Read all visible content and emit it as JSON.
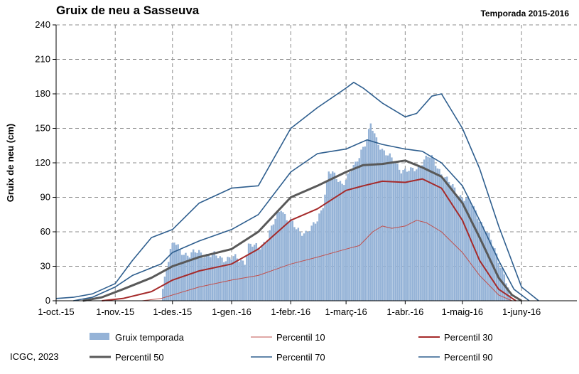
{
  "header": {
    "title": "Gruix de neu a Sasseuva",
    "season": "Temporada 2015-2016"
  },
  "footer": {
    "credit": "ICGC, 2023"
  },
  "chart_data": {
    "type": "area",
    "ylabel": "Gruix de neu (cm)",
    "ylim": [
      0,
      240
    ],
    "yticks": [
      0,
      30,
      60,
      90,
      120,
      150,
      180,
      210,
      240
    ],
    "xlim": [
      "2015-10-01",
      "2016-06-30"
    ],
    "xticks": [
      {
        "date": "2015-10-01",
        "label": "1-oct.-15"
      },
      {
        "date": "2015-11-01",
        "label": "1-nov.-15"
      },
      {
        "date": "2015-12-01",
        "label": "1-des.-15"
      },
      {
        "date": "2016-01-01",
        "label": "1-gen.-16"
      },
      {
        "date": "2016-02-01",
        "label": "1-febr.-16"
      },
      {
        "date": "2016-03-01",
        "label": "1-març-16"
      },
      {
        "date": "2016-04-01",
        "label": "1-abr.-16"
      },
      {
        "date": "2016-05-01",
        "label": "1-maig-16"
      },
      {
        "date": "2016-06-01",
        "label": "1-juny-16"
      }
    ],
    "grid": true,
    "legend_position": "bottom",
    "bars": {
      "name": "Gruix temporada",
      "color": "#95b3d7",
      "points": [
        [
          "2015-11-25",
          0
        ],
        [
          "2015-11-26",
          12
        ],
        [
          "2015-11-28",
          30
        ],
        [
          "2015-11-30",
          44
        ],
        [
          "2015-12-02",
          50
        ],
        [
          "2015-12-05",
          44
        ],
        [
          "2015-12-10",
          40
        ],
        [
          "2015-12-15",
          42
        ],
        [
          "2015-12-20",
          40
        ],
        [
          "2015-12-25",
          38
        ],
        [
          "2015-12-31",
          37
        ],
        [
          "2016-01-05",
          36
        ],
        [
          "2016-01-08",
          35
        ],
        [
          "2016-01-10",
          48
        ],
        [
          "2016-01-15",
          46
        ],
        [
          "2016-01-20",
          55
        ],
        [
          "2016-01-24",
          70
        ],
        [
          "2016-01-27",
          82
        ],
        [
          "2016-01-30",
          72
        ],
        [
          "2016-02-04",
          62
        ],
        [
          "2016-02-09",
          60
        ],
        [
          "2016-02-12",
          62
        ],
        [
          "2016-02-15",
          70
        ],
        [
          "2016-02-18",
          85
        ],
        [
          "2016-02-21",
          112
        ],
        [
          "2016-02-24",
          108
        ],
        [
          "2016-02-28",
          103
        ],
        [
          "2016-03-02",
          108
        ],
        [
          "2016-03-06",
          118
        ],
        [
          "2016-03-09",
          132
        ],
        [
          "2016-03-12",
          140
        ],
        [
          "2016-03-14",
          152
        ],
        [
          "2016-03-17",
          140
        ],
        [
          "2016-03-20",
          133
        ],
        [
          "2016-03-25",
          122
        ],
        [
          "2016-03-30",
          115
        ],
        [
          "2016-04-04",
          112
        ],
        [
          "2016-04-07",
          115
        ],
        [
          "2016-04-10",
          122
        ],
        [
          "2016-04-13",
          125
        ],
        [
          "2016-04-16",
          122
        ],
        [
          "2016-04-20",
          112
        ],
        [
          "2016-04-25",
          100
        ],
        [
          "2016-04-30",
          92
        ],
        [
          "2016-05-05",
          86
        ],
        [
          "2016-05-10",
          72
        ],
        [
          "2016-05-14",
          58
        ],
        [
          "2016-05-18",
          45
        ],
        [
          "2016-05-22",
          28
        ],
        [
          "2016-05-25",
          10
        ],
        [
          "2016-05-27",
          0
        ]
      ]
    },
    "series": [
      {
        "name": "Percentil 10",
        "color": "#c0504d",
        "width": 1,
        "points": [
          [
            "2015-11-15",
            0
          ],
          [
            "2015-11-25",
            2
          ],
          [
            "2015-12-01",
            5
          ],
          [
            "2015-12-15",
            12
          ],
          [
            "2016-01-01",
            18
          ],
          [
            "2016-01-15",
            22
          ],
          [
            "2016-02-01",
            32
          ],
          [
            "2016-02-15",
            38
          ],
          [
            "2016-03-01",
            45
          ],
          [
            "2016-03-08",
            48
          ],
          [
            "2016-03-15",
            60
          ],
          [
            "2016-03-20",
            65
          ],
          [
            "2016-03-25",
            63
          ],
          [
            "2016-04-01",
            65
          ],
          [
            "2016-04-07",
            70
          ],
          [
            "2016-04-12",
            68
          ],
          [
            "2016-04-20",
            60
          ],
          [
            "2016-05-01",
            42
          ],
          [
            "2016-05-10",
            22
          ],
          [
            "2016-05-20",
            5
          ],
          [
            "2016-05-27",
            0
          ]
        ]
      },
      {
        "name": "Percentil 30",
        "color": "#a52a2a",
        "width": 2,
        "points": [
          [
            "2015-10-25",
            0
          ],
          [
            "2015-11-05",
            2
          ],
          [
            "2015-11-20",
            8
          ],
          [
            "2015-12-01",
            18
          ],
          [
            "2015-12-15",
            26
          ],
          [
            "2016-01-01",
            32
          ],
          [
            "2016-01-15",
            45
          ],
          [
            "2016-02-01",
            70
          ],
          [
            "2016-02-15",
            80
          ],
          [
            "2016-03-01",
            96
          ],
          [
            "2016-03-10",
            100
          ],
          [
            "2016-03-20",
            104
          ],
          [
            "2016-04-01",
            103
          ],
          [
            "2016-04-10",
            106
          ],
          [
            "2016-04-20",
            98
          ],
          [
            "2016-05-01",
            70
          ],
          [
            "2016-05-10",
            35
          ],
          [
            "2016-05-20",
            10
          ],
          [
            "2016-05-29",
            0
          ]
        ]
      },
      {
        "name": "Percentil 50",
        "color": "#595959",
        "width": 3,
        "points": [
          [
            "2015-10-15",
            0
          ],
          [
            "2015-10-25",
            3
          ],
          [
            "2015-11-05",
            10
          ],
          [
            "2015-11-20",
            20
          ],
          [
            "2015-12-01",
            30
          ],
          [
            "2015-12-15",
            38
          ],
          [
            "2016-01-01",
            45
          ],
          [
            "2016-01-15",
            60
          ],
          [
            "2016-02-01",
            90
          ],
          [
            "2016-02-15",
            100
          ],
          [
            "2016-03-01",
            112
          ],
          [
            "2016-03-10",
            118
          ],
          [
            "2016-03-20",
            119
          ],
          [
            "2016-04-01",
            122
          ],
          [
            "2016-04-10",
            116
          ],
          [
            "2016-04-20",
            108
          ],
          [
            "2016-05-01",
            85
          ],
          [
            "2016-05-10",
            55
          ],
          [
            "2016-05-20",
            20
          ],
          [
            "2016-05-27",
            5
          ],
          [
            "2016-06-01",
            0
          ]
        ]
      },
      {
        "name": "Percentil 70",
        "color": "#2e5e8e",
        "width": 1.6,
        "points": [
          [
            "2015-10-10",
            0
          ],
          [
            "2015-10-20",
            3
          ],
          [
            "2015-11-01",
            12
          ],
          [
            "2015-11-10",
            22
          ],
          [
            "2015-11-25",
            32
          ],
          [
            "2015-12-01",
            42
          ],
          [
            "2015-12-15",
            52
          ],
          [
            "2016-01-01",
            62
          ],
          [
            "2016-01-15",
            75
          ],
          [
            "2016-02-01",
            112
          ],
          [
            "2016-02-15",
            128
          ],
          [
            "2016-03-01",
            132
          ],
          [
            "2016-03-12",
            140
          ],
          [
            "2016-03-20",
            136
          ],
          [
            "2016-04-01",
            132
          ],
          [
            "2016-04-10",
            130
          ],
          [
            "2016-04-20",
            120
          ],
          [
            "2016-05-01",
            100
          ],
          [
            "2016-05-10",
            70
          ],
          [
            "2016-05-20",
            35
          ],
          [
            "2016-05-28",
            10
          ],
          [
            "2016-06-05",
            0
          ]
        ]
      },
      {
        "name": "Percentil 90",
        "color": "#2e5e8e",
        "width": 1.6,
        "points": [
          [
            "2015-10-01",
            2
          ],
          [
            "2015-10-10",
            3
          ],
          [
            "2015-10-20",
            6
          ],
          [
            "2015-11-01",
            15
          ],
          [
            "2015-11-10",
            35
          ],
          [
            "2015-11-20",
            55
          ],
          [
            "2015-12-01",
            62
          ],
          [
            "2015-12-15",
            85
          ],
          [
            "2016-01-01",
            98
          ],
          [
            "2016-01-15",
            100
          ],
          [
            "2016-02-01",
            150
          ],
          [
            "2016-02-15",
            168
          ],
          [
            "2016-03-01",
            185
          ],
          [
            "2016-03-05",
            190
          ],
          [
            "2016-03-10",
            185
          ],
          [
            "2016-03-20",
            172
          ],
          [
            "2016-04-01",
            160
          ],
          [
            "2016-04-07",
            163
          ],
          [
            "2016-04-15",
            178
          ],
          [
            "2016-04-20",
            180
          ],
          [
            "2016-05-01",
            150
          ],
          [
            "2016-05-10",
            115
          ],
          [
            "2016-05-20",
            65
          ],
          [
            "2016-06-01",
            12
          ],
          [
            "2016-06-10",
            0
          ]
        ]
      }
    ]
  }
}
